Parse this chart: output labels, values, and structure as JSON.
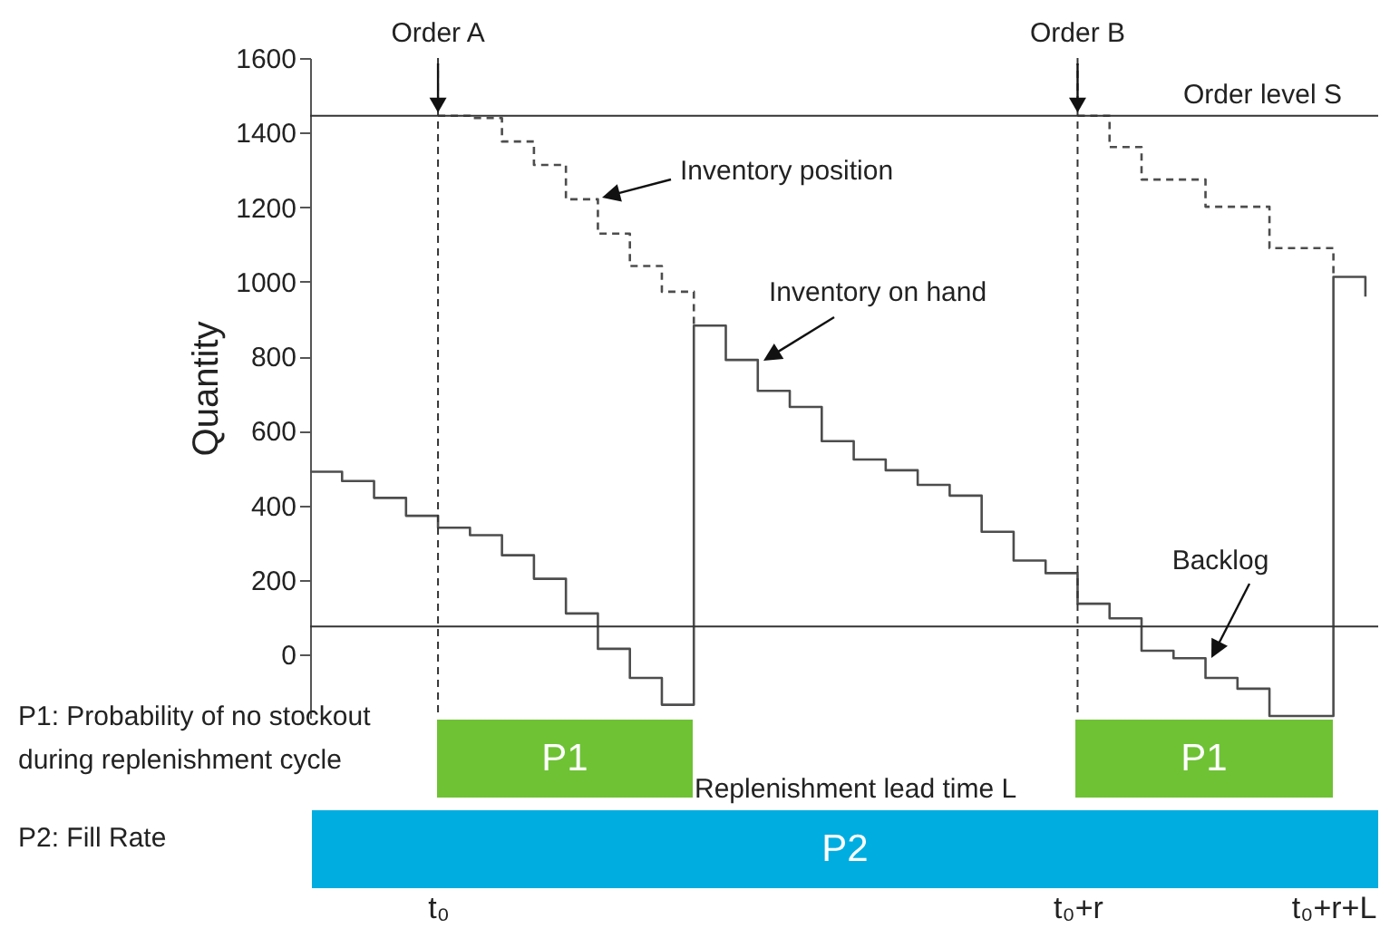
{
  "chart_data": {
    "type": "step",
    "ylabel": "Quantity",
    "marker": "none",
    "categories": [
      null,
      null,
      null,
      null,
      "t₀",
      null,
      null,
      null,
      null,
      null,
      null,
      null,
      null,
      null,
      null,
      null,
      null,
      null,
      null,
      null,
      null,
      null,
      null,
      null,
      "t₀+r",
      null,
      null,
      null,
      null,
      null,
      null,
      null,
      "t₀+r+L",
      null
    ],
    "ylim": [
      -170,
      1600
    ],
    "yticks": [
      0,
      200,
      400,
      600,
      800,
      1000,
      1200,
      1400,
      1600
    ],
    "series": [
      {
        "color": "#4d4d4d",
        "line_style": "solid",
        "values": [
          490,
          465,
          420,
          372,
          340,
          320,
          266,
          203,
          110,
          15,
          -63,
          -135,
          882,
          790,
          707,
          664,
          572,
          523,
          494,
          455,
          426,
          329,
          252,
          218,
          136,
          97,
          10,
          -10,
          -63,
          -92,
          -165,
          -165,
          1013,
          960
        ]
      },
      {
        "color": "#4d4d4d",
        "line_style": "dashed",
        "values": [
          null,
          null,
          null,
          null,
          1445,
          1439,
          1376,
          1313,
          1221,
          1129,
          1042,
          973,
          882,
          null,
          null,
          null,
          null,
          null,
          null,
          null,
          null,
          null,
          null,
          null,
          1445,
          1361,
          1274,
          1274,
          1201,
          1201,
          1090,
          1090,
          1013,
          null
        ]
      }
    ],
    "ref_lines": [
      {
        "axis": "y",
        "value": 1445,
        "label": "Order level S",
        "color": "#333333",
        "line_style": "solid"
      },
      {
        "axis": "y",
        "value": 75,
        "color": "#333333",
        "line_style": "solid"
      },
      {
        "axis": "x",
        "value": "t₀",
        "label": "Order A",
        "color": "#333333",
        "line_style": "dashed"
      },
      {
        "axis": "x",
        "value": "t₀+r",
        "label": "Order B",
        "color": "#333333",
        "line_style": "dashed"
      }
    ],
    "annotations": [
      "P1: Probability of no stockout during replenishment cycle",
      "P2: Fill Rate",
      "Replenishment lead time L",
      "P1",
      "P1",
      "P2",
      "Inventory position",
      "Inventory on hand",
      "Backlog"
    ]
  }
}
